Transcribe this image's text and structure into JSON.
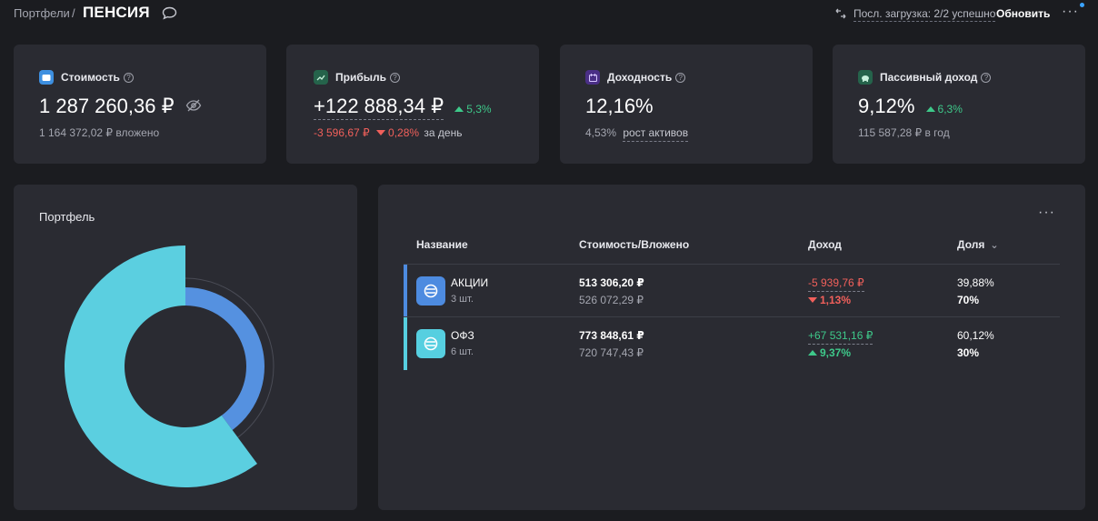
{
  "breadcrumb": {
    "parent": "Портфели",
    "separator": "/",
    "title": "ПЕНСИЯ"
  },
  "sync": {
    "status_text": "Посл. загрузка: 2/2 успешно",
    "refresh_label": "Обновить"
  },
  "more_label": "···",
  "cards": {
    "value": {
      "title": "Стоимость",
      "amount": "1 287 260,36 ₽",
      "invested": "1 164 372,02 ₽ вложено",
      "icon": "wallet-icon",
      "icon_color": "#3d8fe0"
    },
    "profit": {
      "title": "Прибыль",
      "amount": "+122 888,34 ₽",
      "change": "5,3%",
      "day_amount": "-3 596,67 ₽",
      "day_pct": "0,28%",
      "day_label": "за день",
      "icon": "chart-line-icon",
      "icon_color": "#2f8f6a"
    },
    "yield": {
      "title": "Доходность",
      "amount": "12,16%",
      "growth_pct": "4,53%",
      "growth_label": "рост активов",
      "icon": "calendar-icon",
      "icon_color": "#7b4fe0"
    },
    "passive": {
      "title": "Пассивный доход",
      "amount": "9,12%",
      "change": "6,3%",
      "annual": "115 587,28 ₽ в год",
      "icon": "piggy-bank-icon",
      "icon_color": "#2f8f6a"
    }
  },
  "portfolio_panel": {
    "title": "Портфель"
  },
  "table": {
    "headers": {
      "name": "Название",
      "value": "Стоимость/Вложено",
      "income": "Доход",
      "share": "Доля"
    },
    "rows": [
      {
        "name": "АКЦИИ",
        "qty": "3 шт.",
        "value": "513 306,20 ₽",
        "invested": "526 072,29 ₽",
        "income": "-5 939,76 ₽",
        "income_pct": "1,13%",
        "income_dir": "down",
        "share": "39,88%",
        "target": "70%",
        "color": "#4d8be0"
      },
      {
        "name": "ОФЗ",
        "qty": "6 шт.",
        "value": "773 848,61 ₽",
        "invested": "720 747,43 ₽",
        "income": "+67 531,16 ₽",
        "income_pct": "9,37%",
        "income_dir": "up",
        "share": "60,12%",
        "target": "30%",
        "color": "#56cfe0"
      }
    ]
  },
  "chart_data": {
    "type": "pie",
    "variant": "donut",
    "slices": [
      {
        "label": "АКЦИИ",
        "value": 39.88,
        "target": 70,
        "color": "#5591e0"
      },
      {
        "label": "ОФЗ",
        "value": 60.12,
        "target": 30,
        "color": "#5bcfe0"
      }
    ],
    "title": "Портфель"
  }
}
